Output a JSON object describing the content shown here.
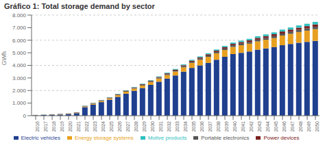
{
  "chart_data": {
    "type": "bar",
    "title": "Gráfico 1: Total storage demand by sector",
    "ylabel": "GWh",
    "categories": [
      "2016",
      "2017",
      "2018",
      "2019",
      "2020",
      "2021",
      "2022",
      "2023",
      "2024",
      "2025",
      "2026",
      "2027",
      "2028",
      "2029",
      "2030",
      "2031",
      "2032",
      "2033",
      "2034",
      "2035",
      "2036",
      "2037",
      "2038",
      "2039",
      "2040",
      "2041",
      "2042",
      "2043",
      "2044",
      "2045",
      "2046",
      "2047",
      "2048",
      "2049",
      "2050"
    ],
    "series": [
      {
        "name": "Electric vehicles",
        "color": "#1F3F8F",
        "values": [
          30,
          50,
          70,
          90,
          120,
          200,
          680,
          880,
          1080,
          1270,
          1500,
          1750,
          1980,
          2200,
          2450,
          2700,
          2950,
          3200,
          3500,
          3800,
          4000,
          4200,
          4450,
          4680,
          4900,
          5000,
          5100,
          5250,
          5350,
          5450,
          5600,
          5700,
          5800,
          5870,
          5950
        ]
      },
      {
        "name": "Energy storage systems",
        "color": "#E8A020",
        "values": [
          8,
          12,
          16,
          20,
          25,
          35,
          55,
          70,
          90,
          110,
          130,
          155,
          175,
          200,
          225,
          255,
          280,
          310,
          350,
          400,
          450,
          480,
          510,
          540,
          570,
          600,
          625,
          655,
          685,
          720,
          770,
          810,
          850,
          890,
          930
        ]
      },
      {
        "name": "Portable electronics",
        "color": "#555555",
        "values": [
          18,
          20,
          22,
          24,
          26,
          28,
          32,
          36,
          40,
          44,
          48,
          52,
          56,
          60,
          65,
          71,
          77,
          83,
          89,
          95,
          101,
          107,
          113,
          119,
          125,
          131,
          137,
          143,
          149,
          155,
          161,
          167,
          173,
          179,
          186
        ]
      },
      {
        "name": "Power devices",
        "color": "#7B2020",
        "values": [
          4,
          5,
          6,
          7,
          8,
          10,
          14,
          17,
          21,
          25,
          28,
          33,
          38,
          43,
          48,
          54,
          60,
          66,
          73,
          80,
          87,
          93,
          100,
          107,
          114,
          121,
          128,
          135,
          142,
          150,
          158,
          166,
          174,
          182,
          192
        ]
      },
      {
        "name": "Motive products",
        "color": "#30C0C0",
        "values": [
          2,
          3,
          4,
          5,
          5,
          7,
          11,
          14,
          17,
          21,
          24,
          28,
          32,
          37,
          42,
          47,
          51,
          57,
          63,
          69,
          76,
          83,
          90,
          97,
          105,
          113,
          121,
          129,
          137,
          147,
          157,
          167,
          177,
          187,
          197
        ]
      }
    ],
    "stacked": true,
    "ylim": [
      0,
      8000
    ],
    "yticks": [
      0,
      {
        "value": 1000,
        "label": "1.000"
      },
      {
        "value": 2000,
        "label": "2.000"
      },
      {
        "value": 3000,
        "label": "3.000"
      },
      {
        "value": 4000,
        "label": "4.000"
      },
      {
        "value": 5000,
        "label": "5.000"
      },
      {
        "value": 6000,
        "label": "6.000"
      },
      {
        "value": 7000,
        "label": "7.000"
      },
      {
        "value": 8000,
        "label": "8.000"
      }
    ],
    "grid": true,
    "legend": "bottom"
  }
}
